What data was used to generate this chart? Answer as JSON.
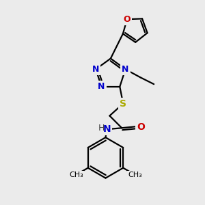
{
  "bg_color": "#ebebeb",
  "atom_colors": {
    "C": "#000000",
    "N": "#0000cc",
    "O": "#cc0000",
    "S": "#aaaa00",
    "H": "#444444"
  },
  "line_color": "#000000",
  "line_width": 1.6,
  "font_size": 9,
  "figsize": [
    3.0,
    3.0
  ],
  "dpi": 100
}
